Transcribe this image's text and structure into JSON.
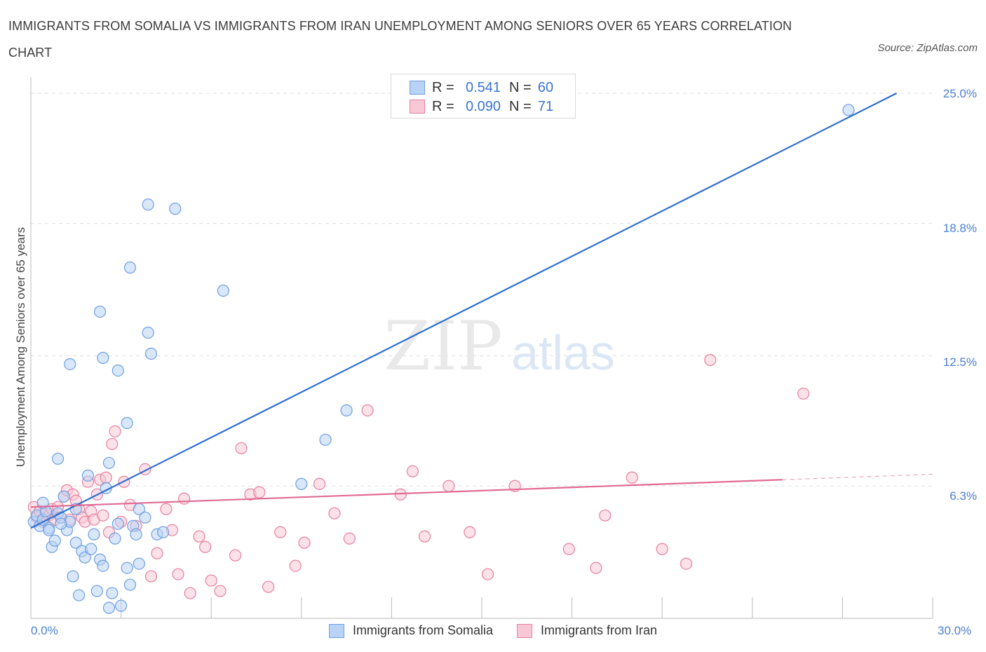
{
  "header": {
    "title": "IMMIGRANTS FROM SOMALIA VS IMMIGRANTS FROM IRAN UNEMPLOYMENT AMONG SENIORS OVER 65 YEARS CORRELATION CHART",
    "source": "Source: ZipAtlas.com"
  },
  "watermark": {
    "zip": "ZIP",
    "atlas": "atlas"
  },
  "legend": {
    "rows": [
      {
        "r_label": "R =",
        "r_value": "0.541",
        "n_label": "N =",
        "n_value": "60"
      },
      {
        "r_label": "R =",
        "r_value": "0.090",
        "n_label": "N =",
        "n_value": "71"
      }
    ]
  },
  "chart_data": {
    "type": "scatter",
    "title": "IMMIGRANTS FROM SOMALIA VS IMMIGRANTS FROM IRAN UNEMPLOYMENT AMONG SENIORS OVER 65 YEARS CORRELATION CHART",
    "xlabel": "",
    "ylabel": "Unemployment Among Seniors over 65 years",
    "xlim": [
      0,
      30
    ],
    "ylim": [
      0,
      25.5
    ],
    "x_tick_labels": [
      "0.0%",
      "30.0%"
    ],
    "y_ticks": [
      6.3,
      12.5,
      18.8,
      25.0
    ],
    "y_tick_labels": [
      "6.3%",
      "12.5%",
      "18.8%",
      "25.0%"
    ],
    "colors": {
      "somalia_fill": "#b8d3f5",
      "somalia_stroke": "#6f9fe0",
      "somalia_line": "#2f6fd0",
      "iran_fill": "#f8c8d6",
      "iran_stroke": "#e8809f",
      "iran_line": "#e06a94",
      "tick_text": "#4a7fd4",
      "grid": "#dddddd"
    },
    "series": [
      {
        "name": "Immigrants from Somalia",
        "r": 0.541,
        "n": 60,
        "trend": {
          "x": [
            0,
            28.8
          ],
          "y": [
            4.3,
            25.0
          ],
          "dashed_to": 28.8
        },
        "points": [
          [
            0.1,
            4.6
          ],
          [
            0.2,
            4.9
          ],
          [
            0.3,
            4.4
          ],
          [
            0.4,
            4.7
          ],
          [
            0.5,
            5.1
          ],
          [
            0.6,
            4.3
          ],
          [
            0.7,
            3.4
          ],
          [
            0.8,
            3.7
          ],
          [
            0.9,
            5.0
          ],
          [
            1.0,
            4.8
          ],
          [
            1.1,
            5.8
          ],
          [
            1.2,
            4.2
          ],
          [
            1.3,
            4.6
          ],
          [
            1.4,
            2.0
          ],
          [
            1.5,
            3.6
          ],
          [
            1.6,
            1.1
          ],
          [
            1.7,
            3.2
          ],
          [
            1.8,
            2.9
          ],
          [
            1.9,
            6.8
          ],
          [
            2.0,
            3.3
          ],
          [
            2.1,
            4.0
          ],
          [
            2.2,
            1.3
          ],
          [
            2.3,
            2.8
          ],
          [
            2.4,
            2.5
          ],
          [
            2.5,
            6.2
          ],
          [
            2.6,
            0.5
          ],
          [
            2.7,
            1.2
          ],
          [
            2.8,
            3.8
          ],
          [
            2.9,
            4.5
          ],
          [
            3.0,
            0.6
          ],
          [
            3.2,
            2.4
          ],
          [
            3.3,
            1.6
          ],
          [
            3.4,
            4.4
          ],
          [
            3.5,
            4.0
          ],
          [
            3.6,
            2.6
          ],
          [
            0.4,
            5.5
          ],
          [
            0.9,
            7.6
          ],
          [
            1.3,
            12.1
          ],
          [
            2.3,
            14.6
          ],
          [
            2.4,
            12.4
          ],
          [
            2.6,
            7.4
          ],
          [
            2.9,
            11.8
          ],
          [
            3.2,
            9.3
          ],
          [
            3.3,
            16.7
          ],
          [
            3.9,
            13.6
          ],
          [
            4.0,
            12.6
          ],
          [
            3.9,
            19.7
          ],
          [
            4.8,
            19.5
          ],
          [
            6.4,
            15.6
          ],
          [
            3.6,
            5.2
          ],
          [
            3.8,
            4.8
          ],
          [
            4.2,
            4.0
          ],
          [
            4.4,
            4.1
          ],
          [
            9.0,
            6.4
          ],
          [
            9.8,
            8.5
          ],
          [
            10.5,
            9.9
          ],
          [
            27.2,
            24.2
          ],
          [
            0.6,
            4.2
          ],
          [
            1.0,
            4.5
          ],
          [
            1.5,
            5.2
          ]
        ]
      },
      {
        "name": "Immigrants from Iran",
        "r": 0.09,
        "n": 71,
        "trend": {
          "x": [
            0,
            25
          ],
          "y": [
            5.3,
            6.6
          ],
          "dashed_to": 30
        },
        "points": [
          [
            0.1,
            5.3
          ],
          [
            0.2,
            4.8
          ],
          [
            0.3,
            5.1
          ],
          [
            0.4,
            4.6
          ],
          [
            0.5,
            5.0
          ],
          [
            0.6,
            4.9
          ],
          [
            0.7,
            5.2
          ],
          [
            0.8,
            4.7
          ],
          [
            0.9,
            5.3
          ],
          [
            1.0,
            4.8
          ],
          [
            1.1,
            5.8
          ],
          [
            1.2,
            6.1
          ],
          [
            1.3,
            4.7
          ],
          [
            1.4,
            5.9
          ],
          [
            1.5,
            5.6
          ],
          [
            1.6,
            5.2
          ],
          [
            1.7,
            4.8
          ],
          [
            1.8,
            4.6
          ],
          [
            1.9,
            6.5
          ],
          [
            2.0,
            5.1
          ],
          [
            2.1,
            4.7
          ],
          [
            2.2,
            5.9
          ],
          [
            2.3,
            6.6
          ],
          [
            2.4,
            4.9
          ],
          [
            2.5,
            6.7
          ],
          [
            2.6,
            4.1
          ],
          [
            2.7,
            8.3
          ],
          [
            2.8,
            8.9
          ],
          [
            3.0,
            4.6
          ],
          [
            3.1,
            6.5
          ],
          [
            3.3,
            5.4
          ],
          [
            3.5,
            4.4
          ],
          [
            3.8,
            7.1
          ],
          [
            4.0,
            2.0
          ],
          [
            4.2,
            3.1
          ],
          [
            4.5,
            5.2
          ],
          [
            4.7,
            4.2
          ],
          [
            4.9,
            2.1
          ],
          [
            5.1,
            5.7
          ],
          [
            5.3,
            1.2
          ],
          [
            5.6,
            3.9
          ],
          [
            5.8,
            3.4
          ],
          [
            6.0,
            1.8
          ],
          [
            6.3,
            1.3
          ],
          [
            6.8,
            3.0
          ],
          [
            7.0,
            8.1
          ],
          [
            7.3,
            5.9
          ],
          [
            7.6,
            6.0
          ],
          [
            7.9,
            1.5
          ],
          [
            8.3,
            4.1
          ],
          [
            8.8,
            2.5
          ],
          [
            9.1,
            3.6
          ],
          [
            9.6,
            6.4
          ],
          [
            10.1,
            5.0
          ],
          [
            10.6,
            3.8
          ],
          [
            11.2,
            9.9
          ],
          [
            12.3,
            5.9
          ],
          [
            12.7,
            7.0
          ],
          [
            13.1,
            3.9
          ],
          [
            13.9,
            6.3
          ],
          [
            14.6,
            4.1
          ],
          [
            15.2,
            2.1
          ],
          [
            16.1,
            6.3
          ],
          [
            17.9,
            3.3
          ],
          [
            18.8,
            2.4
          ],
          [
            19.1,
            4.9
          ],
          [
            20.0,
            6.7
          ],
          [
            21.0,
            3.3
          ],
          [
            21.8,
            2.6
          ],
          [
            22.6,
            12.3
          ],
          [
            25.7,
            10.7
          ]
        ]
      }
    ]
  },
  "bottom_legend": {
    "items": [
      {
        "label": "Immigrants from Somalia"
      },
      {
        "label": "Immigrants from Iran"
      }
    ]
  }
}
